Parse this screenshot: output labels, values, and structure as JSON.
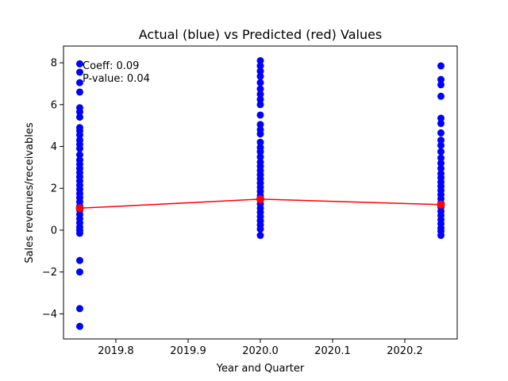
{
  "chart_data": {
    "type": "scatter",
    "title": "Actual (blue) vs Predicted (red) Values",
    "xlabel": "Year and Quarter",
    "ylabel": "Sales revenues/receivables",
    "xlim": [
      2019.7275,
      2020.2725
    ],
    "ylim": [
      -5.2,
      8.8
    ],
    "xticks": [
      2019.8,
      2019.9,
      2020.0,
      2020.1,
      2020.2
    ],
    "xtick_labels": [
      "2019.8",
      "2019.9",
      "2020.0",
      "2020.1",
      "2020.2"
    ],
    "yticks": [
      -4,
      -2,
      0,
      2,
      4,
      6,
      8
    ],
    "ytick_labels": [
      "−4",
      "−2",
      "0",
      "2",
      "4",
      "6",
      "8"
    ],
    "grid": false,
    "annotations": [
      "Coeff: 0.09",
      "P-value: 0.04"
    ],
    "series": [
      {
        "label": "Actual",
        "kind": "scatter",
        "color": "#0000ff",
        "points": [
          {
            "x": 2019.75,
            "y": 7.95
          },
          {
            "x": 2019.75,
            "y": 7.55
          },
          {
            "x": 2019.75,
            "y": 7.05
          },
          {
            "x": 2019.75,
            "y": 6.6
          },
          {
            "x": 2019.75,
            "y": 5.85
          },
          {
            "x": 2019.75,
            "y": 5.65
          },
          {
            "x": 2019.75,
            "y": 5.4
          },
          {
            "x": 2019.75,
            "y": 4.9
          },
          {
            "x": 2019.75,
            "y": 4.75
          },
          {
            "x": 2019.75,
            "y": 4.55
          },
          {
            "x": 2019.75,
            "y": 4.3
          },
          {
            "x": 2019.75,
            "y": 4.1
          },
          {
            "x": 2019.75,
            "y": 3.9
          },
          {
            "x": 2019.75,
            "y": 3.6
          },
          {
            "x": 2019.75,
            "y": 3.35
          },
          {
            "x": 2019.75,
            "y": 3.15
          },
          {
            "x": 2019.75,
            "y": 2.95
          },
          {
            "x": 2019.75,
            "y": 2.75
          },
          {
            "x": 2019.75,
            "y": 2.55
          },
          {
            "x": 2019.75,
            "y": 2.35
          },
          {
            "x": 2019.75,
            "y": 2.15
          },
          {
            "x": 2019.75,
            "y": 1.95
          },
          {
            "x": 2019.75,
            "y": 1.75
          },
          {
            "x": 2019.75,
            "y": 1.55
          },
          {
            "x": 2019.75,
            "y": 1.35
          },
          {
            "x": 2019.75,
            "y": 1.15
          },
          {
            "x": 2019.75,
            "y": 0.95
          },
          {
            "x": 2019.75,
            "y": 0.75
          },
          {
            "x": 2019.75,
            "y": 0.55
          },
          {
            "x": 2019.75,
            "y": 0.35
          },
          {
            "x": 2019.75,
            "y": 0.15
          },
          {
            "x": 2019.75,
            "y": 0.0
          },
          {
            "x": 2019.75,
            "y": -0.15
          },
          {
            "x": 2019.75,
            "y": -1.45
          },
          {
            "x": 2019.75,
            "y": -2.0
          },
          {
            "x": 2019.75,
            "y": -3.75
          },
          {
            "x": 2019.75,
            "y": -4.6
          },
          {
            "x": 2020.0,
            "y": 8.1
          },
          {
            "x": 2020.0,
            "y": 7.85
          },
          {
            "x": 2020.0,
            "y": 7.6
          },
          {
            "x": 2020.0,
            "y": 7.35
          },
          {
            "x": 2020.0,
            "y": 7.05
          },
          {
            "x": 2020.0,
            "y": 6.75
          },
          {
            "x": 2020.0,
            "y": 6.5
          },
          {
            "x": 2020.0,
            "y": 6.25
          },
          {
            "x": 2020.0,
            "y": 6.0
          },
          {
            "x": 2020.0,
            "y": 5.5
          },
          {
            "x": 2020.0,
            "y": 5.05
          },
          {
            "x": 2020.0,
            "y": 4.8
          },
          {
            "x": 2020.0,
            "y": 4.6
          },
          {
            "x": 2020.0,
            "y": 4.2
          },
          {
            "x": 2020.0,
            "y": 3.95
          },
          {
            "x": 2020.0,
            "y": 3.75
          },
          {
            "x": 2020.0,
            "y": 3.5
          },
          {
            "x": 2020.0,
            "y": 3.25
          },
          {
            "x": 2020.0,
            "y": 3.05
          },
          {
            "x": 2020.0,
            "y": 2.85
          },
          {
            "x": 2020.0,
            "y": 2.65
          },
          {
            "x": 2020.0,
            "y": 2.45
          },
          {
            "x": 2020.0,
            "y": 2.25
          },
          {
            "x": 2020.0,
            "y": 2.05
          },
          {
            "x": 2020.0,
            "y": 1.85
          },
          {
            "x": 2020.0,
            "y": 1.65
          },
          {
            "x": 2020.0,
            "y": 1.45
          },
          {
            "x": 2020.0,
            "y": 1.25
          },
          {
            "x": 2020.0,
            "y": 1.05
          },
          {
            "x": 2020.0,
            "y": 0.85
          },
          {
            "x": 2020.0,
            "y": 0.65
          },
          {
            "x": 2020.0,
            "y": 0.45
          },
          {
            "x": 2020.0,
            "y": 0.25
          },
          {
            "x": 2020.0,
            "y": 0.05
          },
          {
            "x": 2020.0,
            "y": -0.25
          },
          {
            "x": 2020.25,
            "y": 7.85
          },
          {
            "x": 2020.25,
            "y": 7.2
          },
          {
            "x": 2020.25,
            "y": 6.95
          },
          {
            "x": 2020.25,
            "y": 6.4
          },
          {
            "x": 2020.25,
            "y": 5.35
          },
          {
            "x": 2020.25,
            "y": 5.1
          },
          {
            "x": 2020.25,
            "y": 4.65
          },
          {
            "x": 2020.25,
            "y": 4.3
          },
          {
            "x": 2020.25,
            "y": 4.05
          },
          {
            "x": 2020.25,
            "y": 3.75
          },
          {
            "x": 2020.25,
            "y": 3.45
          },
          {
            "x": 2020.25,
            "y": 3.2
          },
          {
            "x": 2020.25,
            "y": 2.95
          },
          {
            "x": 2020.25,
            "y": 2.7
          },
          {
            "x": 2020.25,
            "y": 2.5
          },
          {
            "x": 2020.25,
            "y": 2.3
          },
          {
            "x": 2020.25,
            "y": 2.1
          },
          {
            "x": 2020.25,
            "y": 1.9
          },
          {
            "x": 2020.25,
            "y": 1.7
          },
          {
            "x": 2020.25,
            "y": 1.5
          },
          {
            "x": 2020.25,
            "y": 1.3
          },
          {
            "x": 2020.25,
            "y": 1.1
          },
          {
            "x": 2020.25,
            "y": 0.9
          },
          {
            "x": 2020.25,
            "y": 0.7
          },
          {
            "x": 2020.25,
            "y": 0.5
          },
          {
            "x": 2020.25,
            "y": 0.3
          },
          {
            "x": 2020.25,
            "y": 0.1
          },
          {
            "x": 2020.25,
            "y": -0.05
          },
          {
            "x": 2020.25,
            "y": -0.25
          }
        ]
      },
      {
        "label": "Predicted",
        "kind": "line+markers",
        "color": "#ff0000",
        "points": [
          {
            "x": 2019.75,
            "y": 1.05
          },
          {
            "x": 2020.0,
            "y": 1.48
          },
          {
            "x": 2020.25,
            "y": 1.22
          }
        ]
      }
    ]
  }
}
